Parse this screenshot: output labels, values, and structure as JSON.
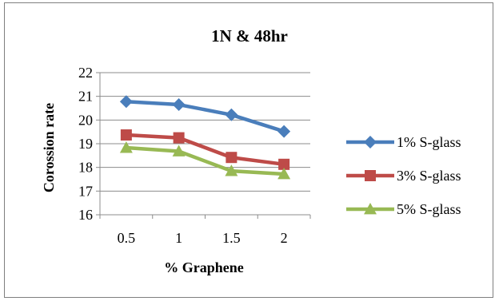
{
  "chart_data": {
    "type": "line",
    "title": "1N & 48hr",
    "xlabel": "% Graphene",
    "ylabel": "Corossion rate",
    "categories": [
      "0.5",
      "1",
      "1.5",
      "2"
    ],
    "ylim": [
      16,
      22
    ],
    "yticks": [
      16,
      17,
      18,
      19,
      20,
      21,
      22
    ],
    "grid": true,
    "legend_position": "right",
    "series": [
      {
        "name": "1% S-glass",
        "values": [
          20.78,
          20.65,
          20.22,
          19.52
        ],
        "color": "#4a7ebb",
        "marker": "diamond"
      },
      {
        "name": "3% S-glass",
        "values": [
          19.37,
          19.25,
          18.42,
          18.13
        ],
        "color": "#be4b48",
        "marker": "square"
      },
      {
        "name": "5% S-glass",
        "values": [
          18.83,
          18.68,
          17.85,
          17.72
        ],
        "color": "#98b954",
        "marker": "triangle"
      }
    ]
  }
}
